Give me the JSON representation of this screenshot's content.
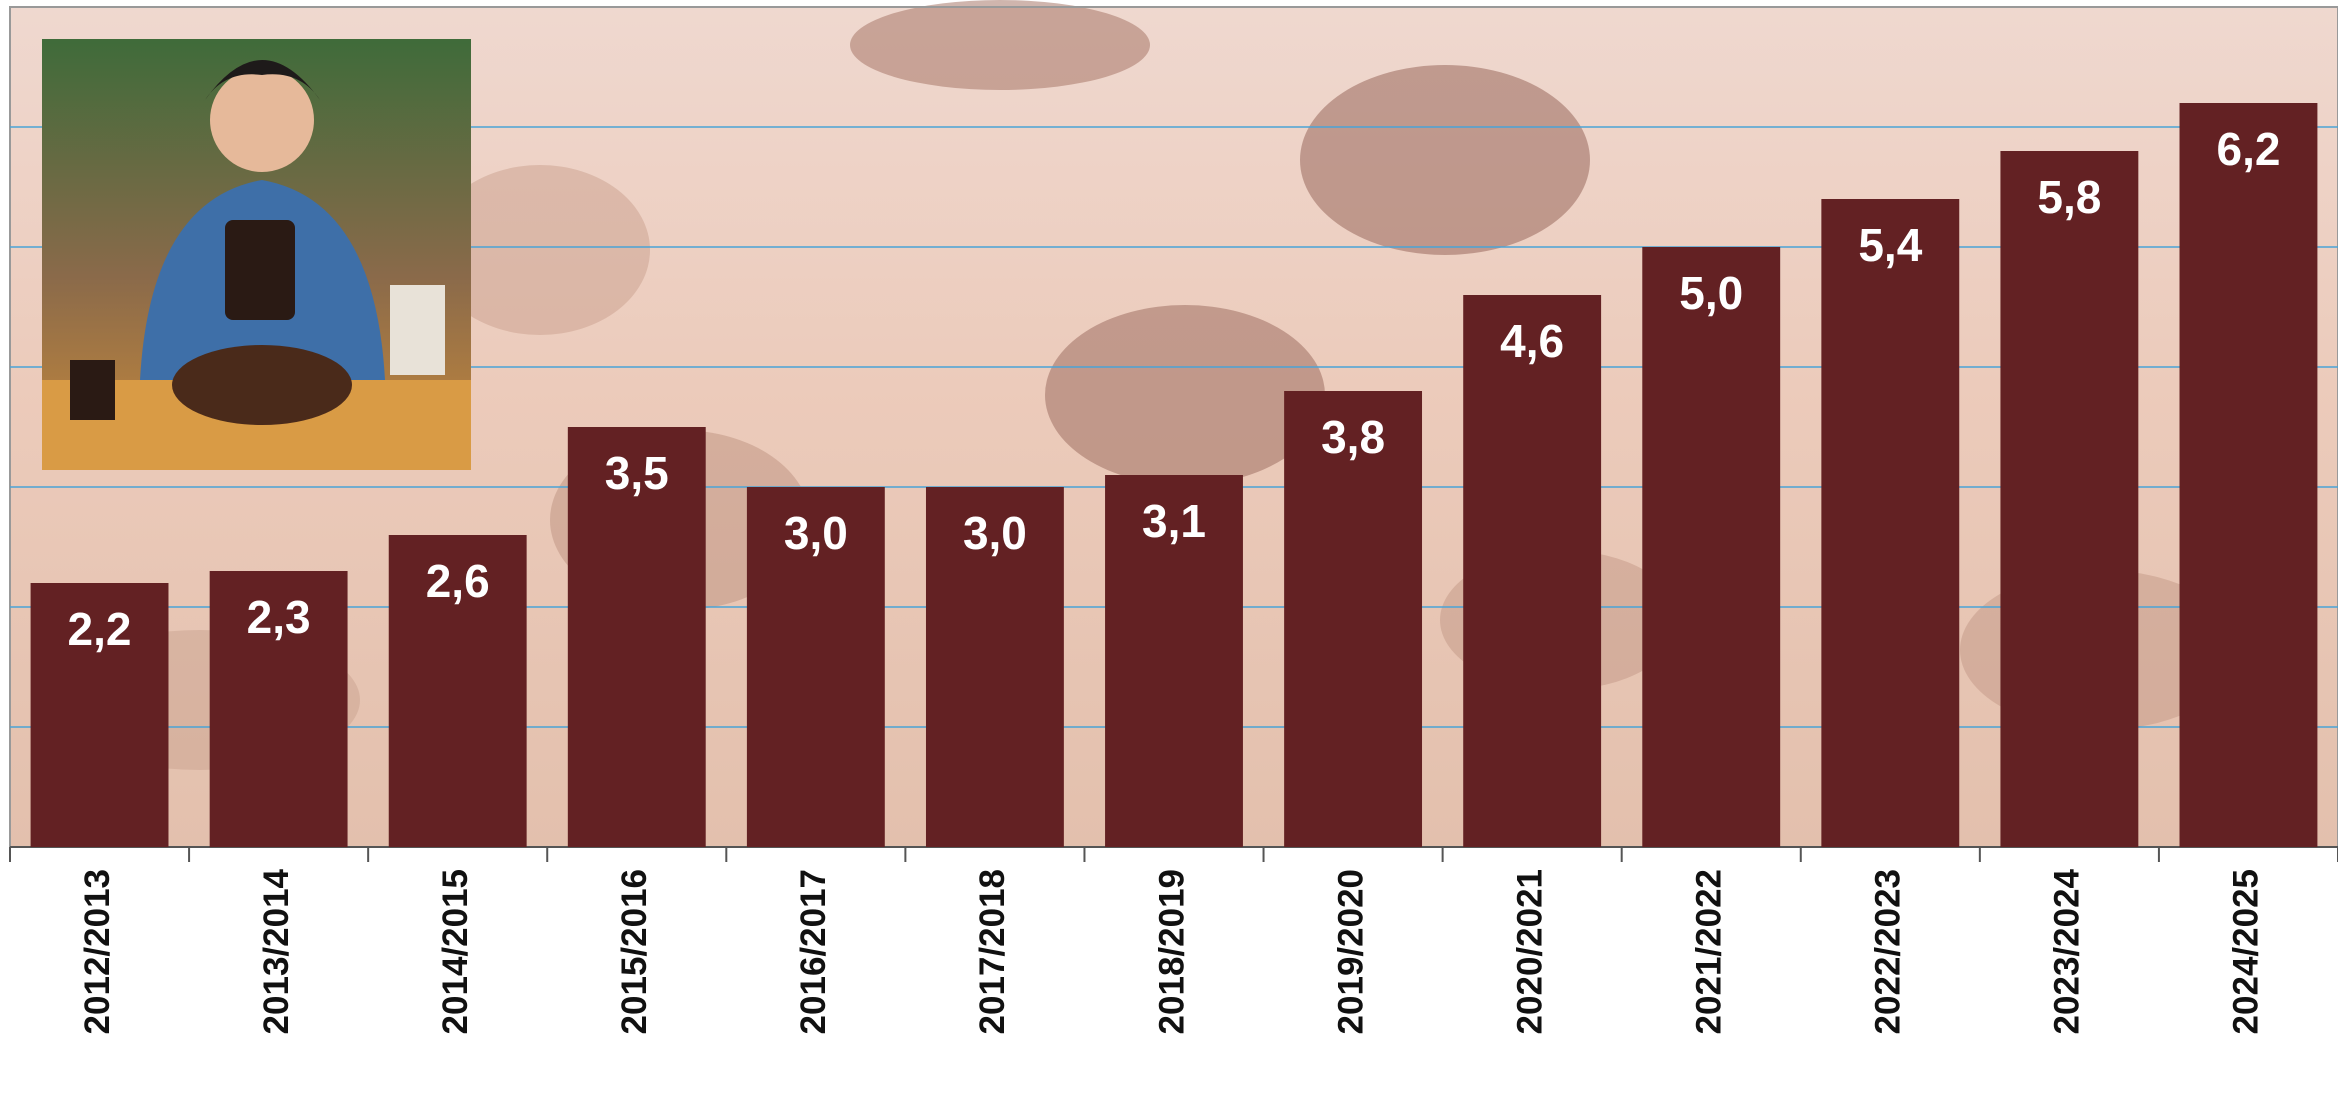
{
  "chart_data": {
    "type": "bar",
    "categories": [
      "2012/2013",
      "2013/2014",
      "2014/2015",
      "2015/2016",
      "2016/2017",
      "2017/2018",
      "2018/2019",
      "2019/2020",
      "2020/2021",
      "2021/2022",
      "2022/2023",
      "2023/2024",
      "2024/2025"
    ],
    "values": [
      2.2,
      2.3,
      2.6,
      3.5,
      3.0,
      3.0,
      3.1,
      3.8,
      4.6,
      5.0,
      5.4,
      5.8,
      6.2
    ],
    "value_labels": [
      "2,2",
      "2,3",
      "2,6",
      "3,5",
      "3,0",
      "3,0",
      "3,1",
      "3,8",
      "4,6",
      "5,0",
      "5,4",
      "5,8",
      "6,2"
    ],
    "color": "#632123",
    "ylim": [
      0,
      7
    ],
    "yticks": [
      1,
      2,
      3,
      4,
      5,
      6
    ],
    "ytick_labels": false,
    "grid": true,
    "grid_color": "#4aa3d6"
  }
}
